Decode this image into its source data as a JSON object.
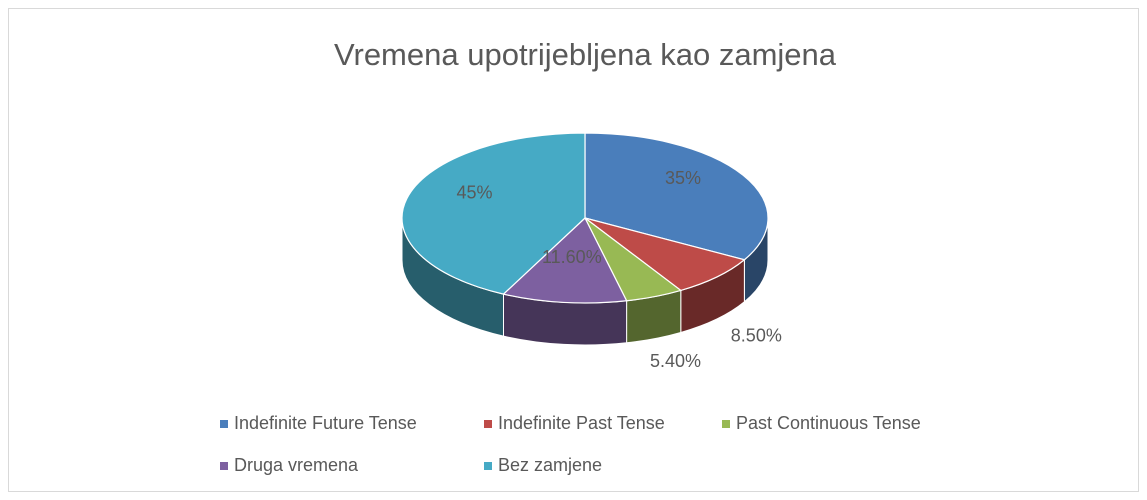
{
  "chart_data": {
    "type": "pie",
    "title": "Vremena upotrijebljena kao zamjena",
    "categories": [
      "Indefinite Future Tense",
      "Indefinite Past Tense",
      "Past Continuous Tense",
      "Druga vremena",
      "Bez zamjene"
    ],
    "values": [
      35,
      8.5,
      5.4,
      11.6,
      45
    ],
    "value_labels": [
      "35%",
      "8.50%",
      "5.40%",
      "11.60%",
      "45%"
    ],
    "colors": [
      "#4a7ebb",
      "#be4b48",
      "#98b954",
      "#7d60a0",
      "#46aac5"
    ],
    "legend": "bottom"
  }
}
